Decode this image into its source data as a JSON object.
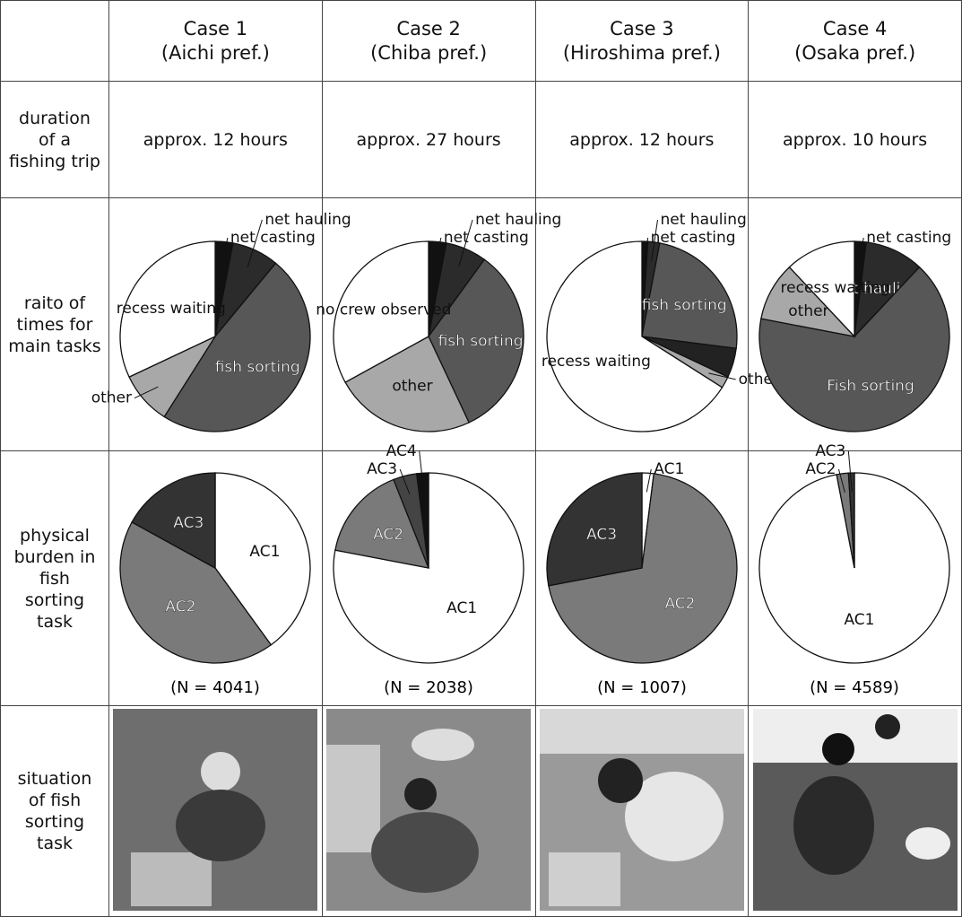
{
  "header": [
    {
      "case": "Case 1",
      "place": "(Aichi pref.)"
    },
    {
      "case": "Case 2",
      "place": "(Chiba pref.)"
    },
    {
      "case": "Case 3",
      "place": "(Hiroshima pref.)"
    },
    {
      "case": "Case 4",
      "place": "(Osaka pref.)"
    }
  ],
  "rows": [
    {
      "label": "duration of a fishing trip",
      "cells": [
        "approx. 12 hours",
        "approx. 27 hours",
        "approx. 12 hours",
        "approx. 10 hours"
      ]
    },
    {
      "label": "raito of times for main tasks",
      "pies": [
        {
          "type": "pie",
          "categories": [
            "net casting",
            "net hauling",
            "fish sorting",
            "other",
            "recess waiting"
          ],
          "values": [
            3,
            8,
            48,
            9,
            32
          ],
          "colors": [
            "#111111",
            "#2b2b2b",
            "#575757",
            "#a8a8a8",
            "#ffffff"
          ]
        },
        {
          "type": "pie",
          "categories": [
            "net casting",
            "net hauling",
            "fish sorting",
            "other",
            "no crew observed"
          ],
          "values": [
            3,
            7,
            33,
            24,
            33
          ],
          "colors": [
            "#111111",
            "#2b2b2b",
            "#575757",
            "#a8a8a8",
            "#ffffff"
          ]
        },
        {
          "type": "pie",
          "categories": [
            "net casting",
            "net hauling",
            "fish sorting",
            null,
            "other",
            "recess waiting"
          ],
          "values": [
            1,
            2,
            24,
            5,
            2,
            66
          ],
          "colors": [
            "#111111",
            "#2b2b2b",
            "#575757",
            "#222222",
            "#a8a8a8",
            "#ffffff"
          ]
        },
        {
          "type": "pie",
          "categories": [
            "net casting",
            "net hauling",
            "Fish sorting",
            "other",
            "recess waiting"
          ],
          "values": [
            2,
            10,
            66,
            10,
            12
          ],
          "colors": [
            "#111111",
            "#2b2b2b",
            "#575757",
            "#a8a8a8",
            "#ffffff"
          ]
        }
      ]
    },
    {
      "label": "physical burden in fish sorting task",
      "pies": [
        {
          "type": "pie",
          "categories": [
            "AC1",
            "AC2",
            "AC3"
          ],
          "values": [
            40,
            43,
            17
          ],
          "colors": [
            "#ffffff",
            "#7a7a7a",
            "#333333"
          ],
          "n_label": "(N = 4041)"
        },
        {
          "type": "pie",
          "categories": [
            "AC1",
            "AC2",
            "AC3",
            "AC4"
          ],
          "values": [
            78,
            16,
            4,
            2
          ],
          "colors": [
            "#ffffff",
            "#7a7a7a",
            "#444444",
            "#111111"
          ],
          "n_label": "(N = 2038)"
        },
        {
          "type": "pie",
          "categories": [
            "AC1",
            "AC2",
            "AC3"
          ],
          "values": [
            2,
            70,
            28
          ],
          "colors": [
            "#ffffff",
            "#7a7a7a",
            "#333333"
          ],
          "n_label": "(N = 1007)"
        },
        {
          "type": "pie",
          "categories": [
            "AC1",
            "AC2",
            "AC3"
          ],
          "values": [
            97,
            2,
            1
          ],
          "colors": [
            "#ffffff",
            "#7a7a7a",
            "#333333"
          ],
          "n_label": "(N = 4589)"
        }
      ]
    },
    {
      "label": "situation of fish sorting task"
    }
  ]
}
